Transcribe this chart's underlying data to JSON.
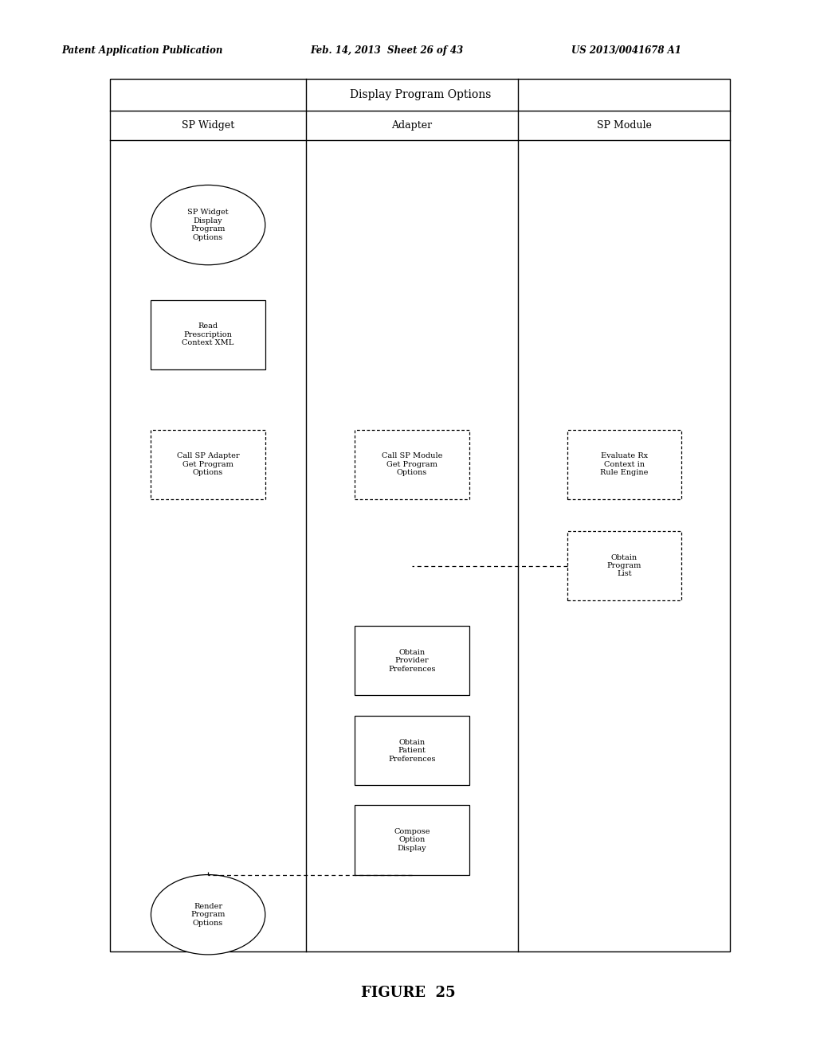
{
  "patent_header_left": "Patent Application Publication",
  "patent_header_mid": "Feb. 14, 2013  Sheet 26 of 43",
  "patent_header_right": "US 2013/0041678 A1",
  "figure_label": "FIGURE  25",
  "title": "Display Program Options",
  "col_headers": [
    "SP Widget",
    "Adapter",
    "SP Module"
  ],
  "background_color": "#ffffff",
  "nodes": {
    "sp_widget_start": {
      "col": 0,
      "row": 0,
      "shape": "ellipse",
      "text": "SP Widget\nDisplay\nProgram\nOptions",
      "border": "solid"
    },
    "read_prescription": {
      "col": 0,
      "row": 1,
      "shape": "rect",
      "text": "Read\nPrescription\nContext XML",
      "border": "solid"
    },
    "call_sp_adapter": {
      "col": 0,
      "row": 2,
      "shape": "rect",
      "text": "Call SP Adapter\nGet Program\nOptions",
      "border": "dashed"
    },
    "call_sp_module": {
      "col": 1,
      "row": 2,
      "shape": "rect",
      "text": "Call SP Module\nGet Program\nOptions",
      "border": "dashed"
    },
    "evaluate_rx": {
      "col": 2,
      "row": 2,
      "shape": "rect",
      "text": "Evaluate Rx\nContext in\nRule Engine",
      "border": "dashed"
    },
    "obtain_program_list": {
      "col": 2,
      "row": 3,
      "shape": "rect",
      "text": "Obtain\nProgram\nList",
      "border": "dashed"
    },
    "obtain_provider_pref": {
      "col": 1,
      "row": 4,
      "shape": "rect",
      "text": "Obtain\nProvider\nPreferences",
      "border": "solid"
    },
    "obtain_patient_pref": {
      "col": 1,
      "row": 5,
      "shape": "rect",
      "text": "Obtain\nPatient\nPreferences",
      "border": "solid"
    },
    "compose_option": {
      "col": 1,
      "row": 6,
      "shape": "rect",
      "text": "Compose\nOption\nDisplay",
      "border": "solid"
    },
    "render_program": {
      "col": 0,
      "row": 7,
      "shape": "ellipse",
      "text": "Render\nProgram\nOptions",
      "border": "solid"
    }
  }
}
